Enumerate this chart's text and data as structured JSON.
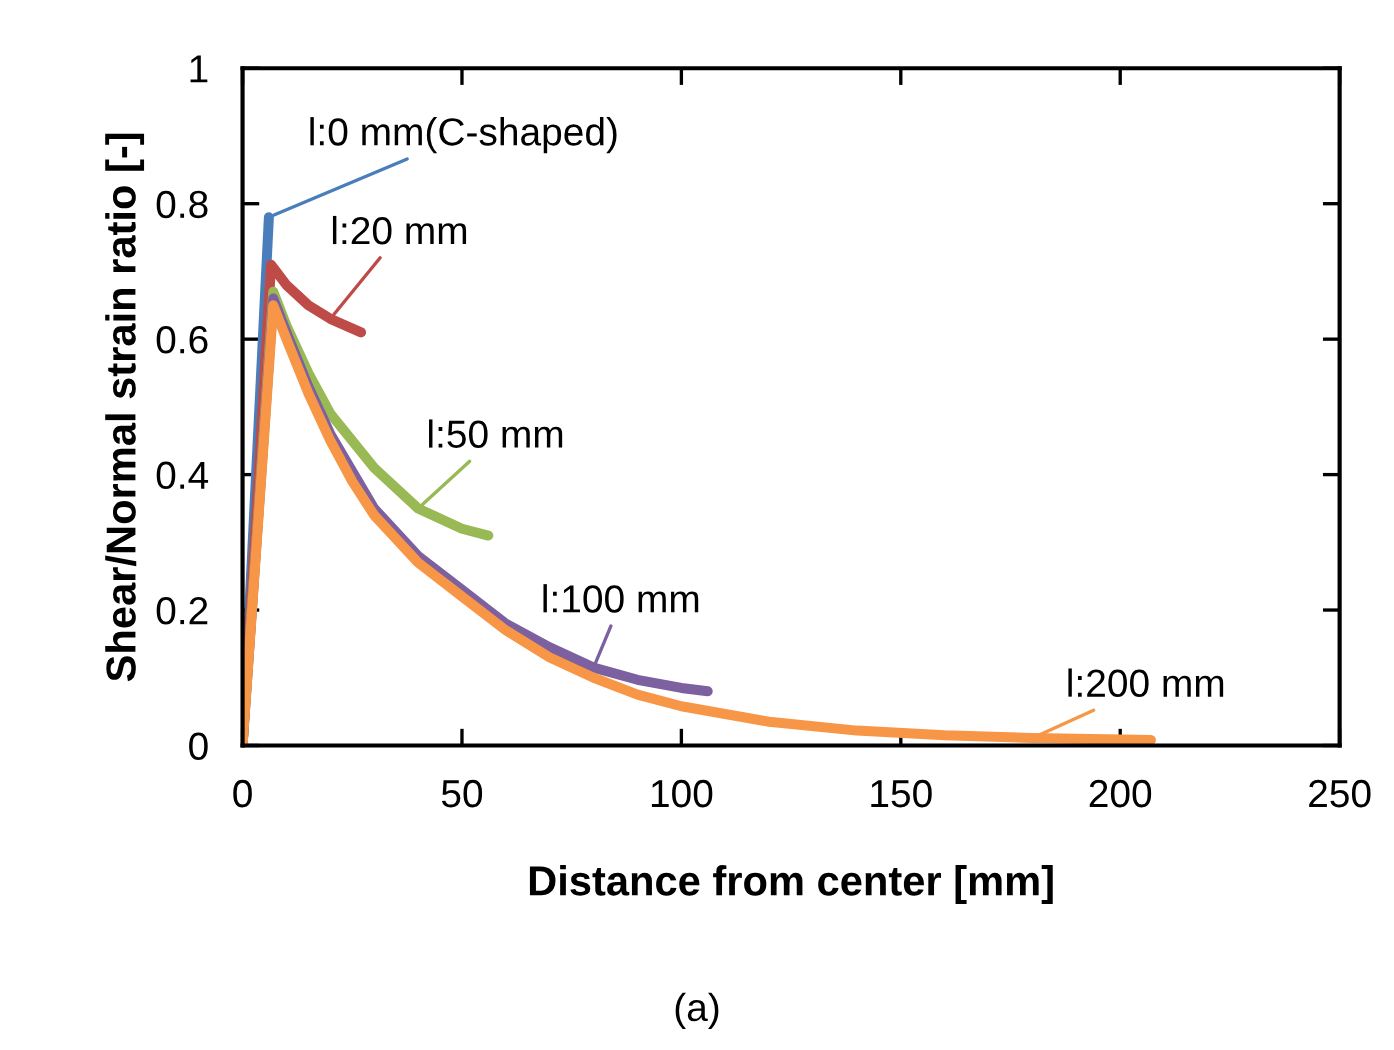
{
  "chart_data": {
    "type": "line",
    "xlabel": "Distance from center [mm]",
    "ylabel": "Shear/Normal strain ratio [-]",
    "annotations": [
      "(a)"
    ],
    "xlim": [
      0,
      250
    ],
    "xticks": [
      0,
      50,
      100,
      150,
      200,
      250
    ],
    "ylim": [
      0,
      1
    ],
    "yticks": [
      0,
      0.2,
      0.4,
      0.6,
      0.8,
      1
    ],
    "grid": false,
    "legend": false,
    "marker": "none",
    "line_style": "solid",
    "series": [
      {
        "name": "l:0 mm(C-shaped)",
        "color": "#4a7ebb",
        "x": [
          0,
          6
        ],
        "values": [
          0,
          0.78
        ]
      },
      {
        "name": "l:20 mm",
        "color": "#be4b48",
        "x": [
          0,
          6.5,
          10,
          15,
          20,
          27
        ],
        "values": [
          0,
          0.71,
          0.68,
          0.65,
          0.63,
          0.61
        ]
      },
      {
        "name": "l:50 mm",
        "color": "#98b954",
        "x": [
          0,
          7,
          10,
          15,
          20,
          30,
          40,
          50,
          56
        ],
        "values": [
          0,
          0.67,
          0.62,
          0.55,
          0.49,
          0.41,
          0.35,
          0.32,
          0.31
        ]
      },
      {
        "name": "l:100 mm",
        "color": "#7d60a0",
        "x": [
          0,
          7,
          10,
          15,
          20,
          30,
          40,
          50,
          60,
          70,
          80,
          90,
          100,
          106
        ],
        "values": [
          0,
          0.66,
          0.61,
          0.53,
          0.46,
          0.35,
          0.28,
          0.23,
          0.18,
          0.145,
          0.115,
          0.097,
          0.085,
          0.08
        ]
      },
      {
        "name": "l:200 mm",
        "color": "#f79646",
        "x": [
          0,
          7,
          10,
          15,
          20,
          25,
          30,
          40,
          50,
          60,
          70,
          80,
          90,
          100,
          120,
          140,
          160,
          180,
          207
        ],
        "values": [
          0,
          0.65,
          0.6,
          0.52,
          0.45,
          0.39,
          0.34,
          0.27,
          0.22,
          0.17,
          0.13,
          0.1,
          0.075,
          0.058,
          0.035,
          0.022,
          0.015,
          0.011,
          0.008
        ]
      }
    ]
  }
}
